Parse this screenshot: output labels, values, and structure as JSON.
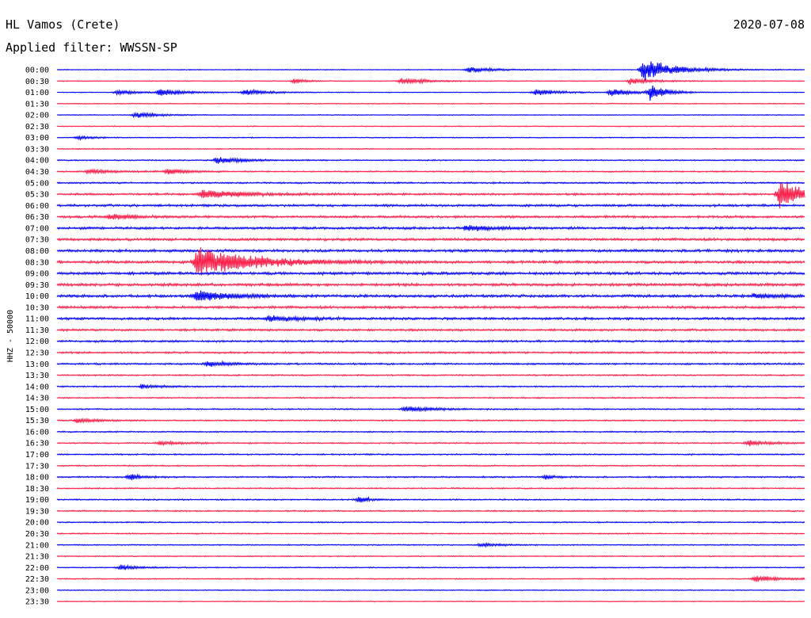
{
  "header": {
    "station": "HL Vamos (Crete)",
    "date": "2020-07-08",
    "filter": "Applied filter: WWSSN-SP"
  },
  "chart_data": {
    "type": "line",
    "title": "HL Vamos (Crete)",
    "subtitle": "Applied filter: WWSSN-SP",
    "date": "2020-07-08",
    "ylabel": "HHZ - 50000",
    "xlabel": "",
    "row_labels": [
      "00:00",
      "00:30",
      "01:00",
      "01:30",
      "02:00",
      "02:30",
      "03:00",
      "03:30",
      "04:00",
      "04:30",
      "05:00",
      "05:30",
      "06:00",
      "06:30",
      "07:00",
      "07:30",
      "08:00",
      "08:30",
      "09:00",
      "09:30",
      "10:00",
      "10:30",
      "11:00",
      "11:30",
      "12:00",
      "12:30",
      "13:00",
      "13:30",
      "14:00",
      "14:30",
      "15:00",
      "15:30",
      "16:00",
      "16:30",
      "17:00",
      "17:30",
      "18:00",
      "18:30",
      "19:00",
      "19:30",
      "20:00",
      "20:30",
      "21:00",
      "21:30",
      "22:00",
      "22:30",
      "23:00",
      "23:30"
    ],
    "row_colors": [
      "#0000ff",
      "#ff1f4a"
    ],
    "trace_span_minutes": 30,
    "background_noise": [
      0.12,
      0.12,
      0.12,
      0.14,
      0.12,
      0.14,
      0.14,
      0.16,
      0.18,
      0.2,
      0.24,
      0.3,
      0.34,
      0.36,
      0.36,
      0.38,
      0.4,
      0.4,
      0.42,
      0.42,
      0.4,
      0.38,
      0.36,
      0.32,
      0.3,
      0.28,
      0.26,
      0.22,
      0.2,
      0.2,
      0.2,
      0.2,
      0.2,
      0.2,
      0.2,
      0.2,
      0.22,
      0.2,
      0.2,
      0.2,
      0.18,
      0.18,
      0.16,
      0.16,
      0.16,
      0.16,
      0.14,
      0.12
    ],
    "events": [
      {
        "row": 0,
        "minute": 16.5,
        "amplitude": 1.3,
        "duration_min": 1.5
      },
      {
        "row": 0,
        "minute": 23.5,
        "amplitude": 4.5,
        "duration_min": 2.0
      },
      {
        "row": 1,
        "minute": 9.5,
        "amplitude": 0.9,
        "duration_min": 0.8
      },
      {
        "row": 1,
        "minute": 13.8,
        "amplitude": 1.5,
        "duration_min": 1.5
      },
      {
        "row": 1,
        "minute": 23,
        "amplitude": 1.3,
        "duration_min": 1.5
      },
      {
        "row": 2,
        "minute": 2.4,
        "amplitude": 1.0,
        "duration_min": 1.2
      },
      {
        "row": 2,
        "minute": 4.1,
        "amplitude": 1.5,
        "duration_min": 1.5
      },
      {
        "row": 2,
        "minute": 7.5,
        "amplitude": 1.2,
        "duration_min": 1.5
      },
      {
        "row": 2,
        "minute": 19.2,
        "amplitude": 1.3,
        "duration_min": 1.5
      },
      {
        "row": 2,
        "minute": 22.2,
        "amplitude": 1.4,
        "duration_min": 1.5
      },
      {
        "row": 2,
        "minute": 23.8,
        "amplitude": 3.0,
        "duration_min": 1.0
      },
      {
        "row": 4,
        "minute": 3.1,
        "amplitude": 1.2,
        "duration_min": 1.5
      },
      {
        "row": 6,
        "minute": 0.8,
        "amplitude": 0.7,
        "duration_min": 1.0
      },
      {
        "row": 8,
        "minute": 6.4,
        "amplitude": 1.5,
        "duration_min": 1.5
      },
      {
        "row": 9,
        "minute": 1.2,
        "amplitude": 0.8,
        "duration_min": 2.0
      },
      {
        "row": 9,
        "minute": 4.4,
        "amplitude": 1.2,
        "duration_min": 1.2
      },
      {
        "row": 11,
        "minute": 5.8,
        "amplitude": 2.0,
        "duration_min": 2.5
      },
      {
        "row": 11,
        "minute": 29,
        "amplitude": 6.0,
        "duration_min": 1.5
      },
      {
        "row": 13,
        "minute": 2.1,
        "amplitude": 1.2,
        "duration_min": 1.5
      },
      {
        "row": 14,
        "minute": 16.4,
        "amplitude": 1.2,
        "duration_min": 1.5
      },
      {
        "row": 17,
        "minute": 5.6,
        "amplitude": 6.5,
        "duration_min": 3.5
      },
      {
        "row": 20,
        "minute": 5.6,
        "amplitude": 2.5,
        "duration_min": 2.0
      },
      {
        "row": 20,
        "minute": 28,
        "amplitude": 1.0,
        "duration_min": 1.5
      },
      {
        "row": 22,
        "minute": 8.5,
        "amplitude": 1.2,
        "duration_min": 2.0
      },
      {
        "row": 26,
        "minute": 6.0,
        "amplitude": 1.0,
        "duration_min": 1.5
      },
      {
        "row": 28,
        "minute": 3.4,
        "amplitude": 0.8,
        "duration_min": 1.2
      },
      {
        "row": 30,
        "minute": 13.9,
        "amplitude": 1.0,
        "duration_min": 2.0
      },
      {
        "row": 31,
        "minute": 0.8,
        "amplitude": 1.0,
        "duration_min": 1.2
      },
      {
        "row": 33,
        "minute": 4.1,
        "amplitude": 0.8,
        "duration_min": 1.5
      },
      {
        "row": 33,
        "minute": 27.7,
        "amplitude": 1.0,
        "duration_min": 1.5
      },
      {
        "row": 36,
        "minute": 2.9,
        "amplitude": 1.6,
        "duration_min": 0.8
      },
      {
        "row": 36,
        "minute": 19.6,
        "amplitude": 0.8,
        "duration_min": 0.6
      },
      {
        "row": 38,
        "minute": 12.1,
        "amplitude": 1.5,
        "duration_min": 0.6
      },
      {
        "row": 42,
        "minute": 17.0,
        "amplitude": 0.8,
        "duration_min": 1.2
      },
      {
        "row": 44,
        "minute": 2.5,
        "amplitude": 1.0,
        "duration_min": 1.2
      },
      {
        "row": 45,
        "minute": 28.0,
        "amplitude": 1.5,
        "duration_min": 1.5
      }
    ]
  }
}
